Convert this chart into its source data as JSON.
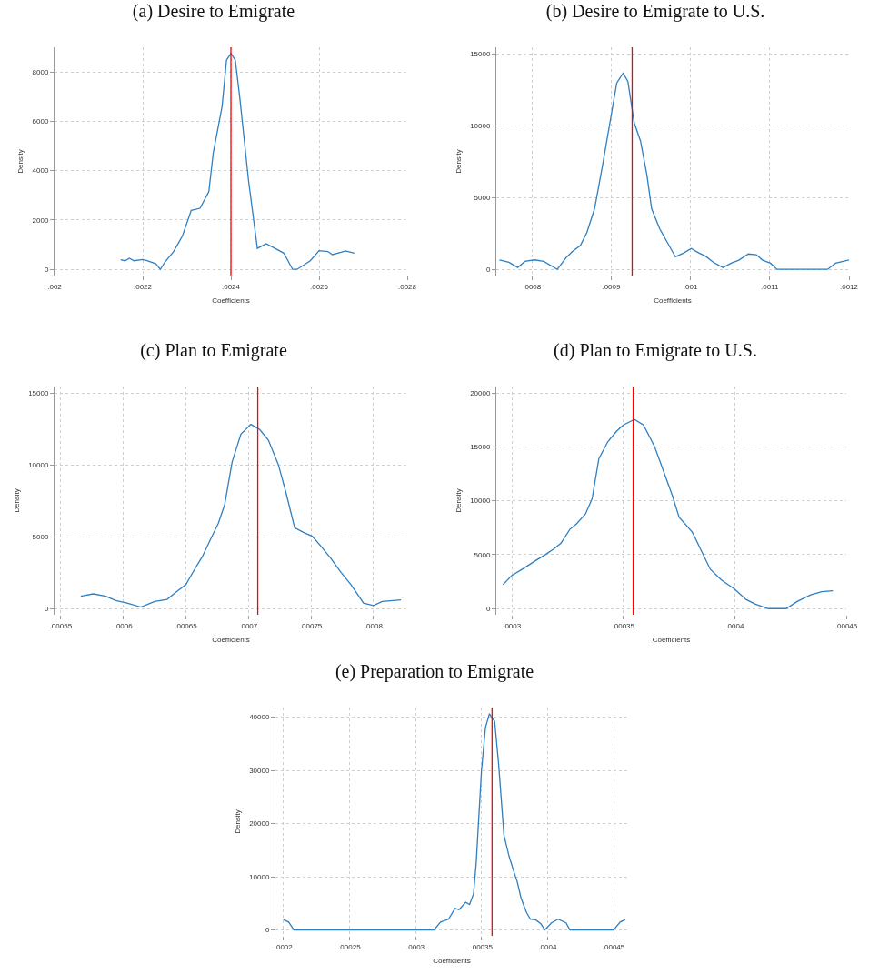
{
  "chart_data": [
    {
      "type": "line",
      "title": "(a) Desire to Emigrate",
      "xlabel": "Coefficients",
      "ylabel": "Density",
      "grid": true,
      "marker": "none",
      "line_style": "solid",
      "xlim": [
        0.002,
        0.0028
      ],
      "xticks": [
        {
          "value": 0.002,
          "label": ".002"
        },
        {
          "value": 0.0022,
          "label": ".0022"
        },
        {
          "value": 0.0024,
          "label": ".0024"
        },
        {
          "value": 0.0026,
          "label": ".0026"
        },
        {
          "value": 0.0028,
          "label": ".0028"
        }
      ],
      "ylim": [
        -250,
        9000
      ],
      "yticks": [
        0,
        2000,
        4000,
        6000,
        8000
      ],
      "ref_lines": [
        {
          "axis": "x",
          "value": 0.0024,
          "color": "#ff0000"
        }
      ],
      "series": [
        {
          "color": "#2f7fc1",
          "x": [
            0.00215,
            0.00216,
            0.00217,
            0.00218,
            0.0022,
            0.00221,
            0.00223,
            0.00224,
            0.00225,
            0.00227,
            0.00229,
            0.00231,
            0.00233,
            0.00235,
            0.00236,
            0.00238,
            0.00239,
            0.0024,
            0.00241,
            0.00242,
            0.00244,
            0.00246,
            0.00248,
            0.0025,
            0.00252,
            0.00254,
            0.00255,
            0.00258,
            0.0026,
            0.00262,
            0.00263,
            0.00265,
            0.00266,
            0.00268
          ],
          "values": [
            390,
            350,
            450,
            350,
            400,
            350,
            225,
            0,
            290,
            725,
            1350,
            2390,
            2475,
            3160,
            4725,
            6600,
            8475,
            8750,
            8475,
            6975,
            3600,
            850,
            1040,
            850,
            660,
            0,
            0,
            350,
            760,
            725,
            600,
            690,
            750,
            660
          ]
        }
      ]
    },
    {
      "type": "line",
      "title": "(b) Desire to Emigrate to U.S.",
      "xlabel": "Coefficients",
      "ylabel": "Density",
      "grid": true,
      "marker": "none",
      "line_style": "solid",
      "xlim": [
        0.000755,
        0.0012
      ],
      "xticks": [
        {
          "value": 0.0008,
          "label": ".0008"
        },
        {
          "value": 0.0009,
          "label": ".0009"
        },
        {
          "value": 0.001,
          "label": ".001"
        },
        {
          "value": 0.0011,
          "label": ".0011"
        },
        {
          "value": 0.0012,
          "label": ".0012"
        }
      ],
      "ylim": [
        -430,
        15450
      ],
      "yticks": [
        0,
        5000,
        10000,
        15000
      ],
      "ref_lines": [
        {
          "axis": "x",
          "value": 0.0009264,
          "color": "#ff0000"
        }
      ],
      "series": [
        {
          "color": "#2f7fc1",
          "x": [
            0.000759,
            0.000771,
            0.000782,
            0.000791,
            0.000803,
            0.000815,
            0.000832,
            0.000843,
            0.000851,
            0.000861,
            0.000869,
            0.000879,
            0.000889,
            0.000899,
            0.000907,
            0.000915,
            0.000921,
            0.000929,
            0.000937,
            0.000945,
            0.000951,
            0.000961,
            0.000973,
            0.000981,
            0.000991,
            0.001001,
            0.001011,
            0.001019,
            0.001029,
            0.001041,
            0.001052,
            0.001061,
            0.001073,
            0.001083,
            0.001091,
            0.001101,
            0.001109,
            0.001173,
            0.001183,
            0.0012
          ],
          "values": [
            660,
            490,
            130,
            555,
            660,
            555,
            0,
            810,
            1240,
            1660,
            2520,
            4220,
            7210,
            10410,
            12970,
            13650,
            13080,
            10200,
            8920,
            6570,
            4220,
            2840,
            1660,
            870,
            1130,
            1450,
            1130,
            920,
            490,
            130,
            450,
            640,
            1070,
            1020,
            640,
            430,
            0,
            0,
            430,
            660
          ]
        }
      ]
    },
    {
      "type": "line",
      "title": "(c) Plan to Emigrate",
      "xlabel": "Coefficients",
      "ylabel": "Density",
      "grid": true,
      "marker": "none",
      "line_style": "solid",
      "xlim": [
        0.000545,
        0.000827
      ],
      "xticks": [
        {
          "value": 0.00055,
          "label": ".00055"
        },
        {
          "value": 0.0006,
          "label": ".0006"
        },
        {
          "value": 0.00065,
          "label": ".00065"
        },
        {
          "value": 0.0007,
          "label": ".0007"
        },
        {
          "value": 0.00075,
          "label": ".00075"
        },
        {
          "value": 0.0008,
          "label": ".0008"
        }
      ],
      "ylim": [
        -430,
        15450
      ],
      "yticks": [
        0,
        5000,
        10000,
        15000
      ],
      "ref_lines": [
        {
          "axis": "x",
          "value": 0.0007075,
          "color": "#ff0000"
        }
      ],
      "series": [
        {
          "color": "#2f7fc1",
          "x": [
            0.000566,
            0.000576,
            0.000586,
            0.000594,
            0.000603,
            0.000614,
            0.000625,
            0.000635,
            0.000642,
            0.00065,
            0.000657,
            0.000663,
            0.00067,
            0.000676,
            0.000681,
            0.000687,
            0.000694,
            0.000702,
            0.000709,
            0.000716,
            0.000724,
            0.00073,
            0.000737,
            0.000744,
            0.000751,
            0.000758,
            0.000766,
            0.000774,
            0.000782,
            0.000792,
            0.0008,
            0.000807,
            0.000822
          ],
          "values": [
            855,
            1025,
            855,
            555,
            385,
            105,
            490,
            640,
            1130,
            1670,
            2735,
            3590,
            4870,
            5940,
            7220,
            10210,
            12140,
            12820,
            12460,
            11710,
            10000,
            8080,
            5620,
            5300,
            5040,
            4340,
            3480,
            2520,
            1670,
            385,
            215,
            490,
            600
          ]
        }
      ]
    },
    {
      "type": "line",
      "title": "(d) Plan to Emigrate to U.S.",
      "xlabel": "Coefficients",
      "ylabel": "Density",
      "grid": true,
      "marker": "none",
      "line_style": "solid",
      "xlim": [
        0.000293,
        0.00045
      ],
      "xticks": [
        {
          "value": 0.0003,
          "label": ".0003"
        },
        {
          "value": 0.00035,
          "label": ".00035"
        },
        {
          "value": 0.0004,
          "label": ".0004"
        },
        {
          "value": 0.00045,
          "label": ".00045"
        }
      ],
      "ylim": [
        -570,
        20600
      ],
      "yticks": [
        0,
        5000,
        10000,
        15000,
        20000
      ],
      "ref_lines": [
        {
          "axis": "x",
          "value": 0.0003544,
          "color": "#ff0000"
        }
      ],
      "series": [
        {
          "color": "#2f7fc1",
          "x": [
            0.000296,
            0.0003,
            0.000305,
            0.000311,
            0.000315,
            0.000319,
            0.000322,
            0.000326,
            0.000329,
            0.000333,
            0.000336,
            0.000339,
            0.000343,
            0.000347,
            0.00035,
            0.000355,
            0.000359,
            0.000364,
            0.000368,
            0.000372,
            0.000375,
            0.000381,
            0.000385,
            0.000389,
            0.000394,
            0.0004,
            0.000405,
            0.000409,
            0.000415,
            0.000423,
            0.000428,
            0.000434,
            0.000439,
            0.000444
          ],
          "values": [
            2220,
            3080,
            3700,
            4500,
            5010,
            5560,
            6070,
            7350,
            7860,
            8770,
            10200,
            13900,
            15470,
            16470,
            17040,
            17550,
            17040,
            15040,
            12760,
            10480,
            8490,
            7070,
            5360,
            3650,
            2650,
            1790,
            850,
            430,
            0,
            0,
            660,
            1280,
            1570,
            1650
          ]
        }
      ]
    },
    {
      "type": "line",
      "title": "(e) Preparation to Emigrate",
      "xlabel": "Coefficients",
      "ylabel": "Density",
      "grid": true,
      "marker": "none",
      "line_style": "solid",
      "xlim": [
        0.000194,
        0.000461
      ],
      "xticks": [
        {
          "value": 0.0002,
          "label": ".0002"
        },
        {
          "value": 0.00025,
          "label": ".00025"
        },
        {
          "value": 0.0003,
          "label": ".0003"
        },
        {
          "value": 0.00035,
          "label": ".00035"
        },
        {
          "value": 0.0004,
          "label": ".0004"
        },
        {
          "value": 0.00045,
          "label": ".00045"
        }
      ],
      "ylim": [
        -1100,
        41800
      ],
      "yticks": [
        0,
        10000,
        20000,
        30000,
        40000
      ],
      "ref_lines": [
        {
          "axis": "x",
          "value": 0.000358,
          "color": "#ff0000"
        }
      ],
      "series": [
        {
          "color": "#2f7fc1",
          "x": [
            0.0002,
            0.000204,
            0.000208,
            0.000314,
            0.000319,
            0.000325,
            0.00033,
            0.000333,
            0.000338,
            0.000341,
            0.000344,
            0.000346,
            0.00035,
            0.000353,
            0.000356,
            0.00036,
            0.000363,
            0.000367,
            0.000371,
            0.000375,
            0.000377,
            0.00038,
            0.000384,
            0.000387,
            0.000391,
            0.000395,
            0.000398,
            0.000403,
            0.000408,
            0.000414,
            0.000417,
            0.00045,
            0.000455,
            0.000459
          ],
          "values": [
            1970,
            1500,
            0,
            0,
            1500,
            2020,
            4050,
            3810,
            5200,
            4800,
            6820,
            12600,
            29940,
            38030,
            40640,
            39190,
            31100,
            17800,
            13760,
            10580,
            9130,
            5950,
            3350,
            2020,
            1910,
            1160,
            0,
            1330,
            2020,
            1330,
            0,
            0,
            1500,
            1970
          ]
        }
      ]
    }
  ]
}
